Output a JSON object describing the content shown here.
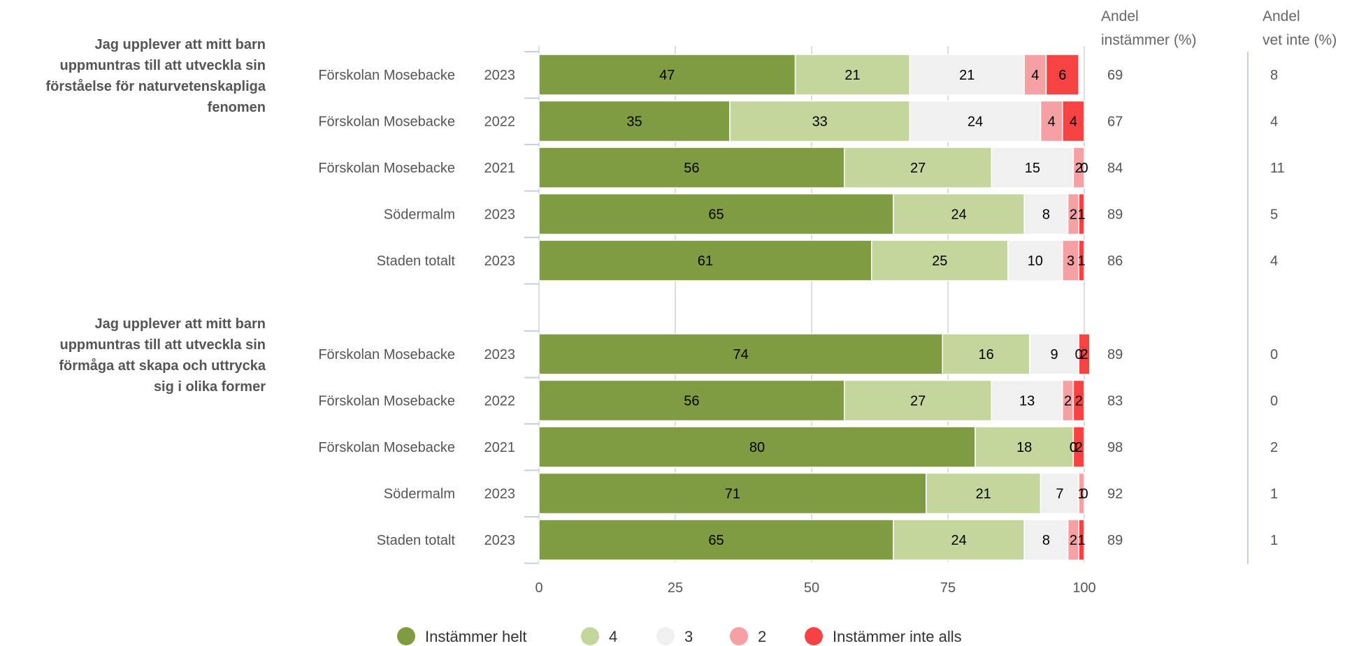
{
  "chart_data": {
    "type": "bar",
    "orientation": "horizontal",
    "stacked": true,
    "xlim": [
      0,
      100
    ],
    "x_ticks": [
      "0",
      "25",
      "50",
      "75",
      "100"
    ],
    "grid": true,
    "legend_position": "bottom",
    "column_headers": [
      [
        "Andel",
        "instämmer (%)"
      ],
      [
        "Andel",
        "vet inte (%)"
      ]
    ],
    "series": [
      {
        "name": "Instämmer helt",
        "color": "#7f9c42"
      },
      {
        "name": "4",
        "color": "#c4d69b"
      },
      {
        "name": "3",
        "color": "#f0f0f0"
      },
      {
        "name": "2",
        "color": "#f5a0a3"
      },
      {
        "name": "Instämmer inte alls",
        "color": "#f84345"
      }
    ],
    "groups": [
      {
        "question": [
          "Jag upplever att mitt barn",
          "uppmuntras till att utveckla sin",
          "förståelse för naturvetenskapliga",
          "fenomen"
        ],
        "rows": [
          {
            "unit": "Förskolan Mosebacke",
            "year": "2023",
            "values": [
              47,
              21,
              21,
              4,
              6
            ],
            "agree": "69",
            "dont_know": "8"
          },
          {
            "unit": "Förskolan Mosebacke",
            "year": "2022",
            "values": [
              35,
              33,
              24,
              4,
              4
            ],
            "agree": "67",
            "dont_know": "4"
          },
          {
            "unit": "Förskolan Mosebacke",
            "year": "2021",
            "values": [
              56,
              27,
              15,
              2,
              0
            ],
            "agree": "84",
            "dont_know": "11"
          },
          {
            "unit": "Södermalm",
            "year": "2023",
            "values": [
              65,
              24,
              8,
              2,
              1
            ],
            "agree": "89",
            "dont_know": "5"
          },
          {
            "unit": "Staden totalt",
            "year": "2023",
            "values": [
              61,
              25,
              10,
              3,
              1
            ],
            "agree": "86",
            "dont_know": "4"
          }
        ]
      },
      {
        "question": [
          "Jag upplever att mitt barn",
          "uppmuntras till att utveckla sin",
          "förmåga att skapa och uttrycka",
          "sig i olika former"
        ],
        "rows": [
          {
            "unit": "Förskolan Mosebacke",
            "year": "2023",
            "values": [
              74,
              16,
              9,
              0,
              2
            ],
            "agree": "89",
            "dont_know": "0"
          },
          {
            "unit": "Förskolan Mosebacke",
            "year": "2022",
            "values": [
              56,
              27,
              13,
              2,
              2
            ],
            "agree": "83",
            "dont_know": "0"
          },
          {
            "unit": "Förskolan Mosebacke",
            "year": "2021",
            "values": [
              80,
              18,
              0,
              0,
              2
            ],
            "agree": "98",
            "dont_know": "2"
          },
          {
            "unit": "Södermalm",
            "year": "2023",
            "values": [
              71,
              21,
              7,
              1,
              0
            ],
            "agree": "92",
            "dont_know": "1"
          },
          {
            "unit": "Staden totalt",
            "year": "2023",
            "values": [
              65,
              24,
              8,
              2,
              1
            ],
            "agree": "89",
            "dont_know": "1"
          }
        ]
      }
    ]
  }
}
